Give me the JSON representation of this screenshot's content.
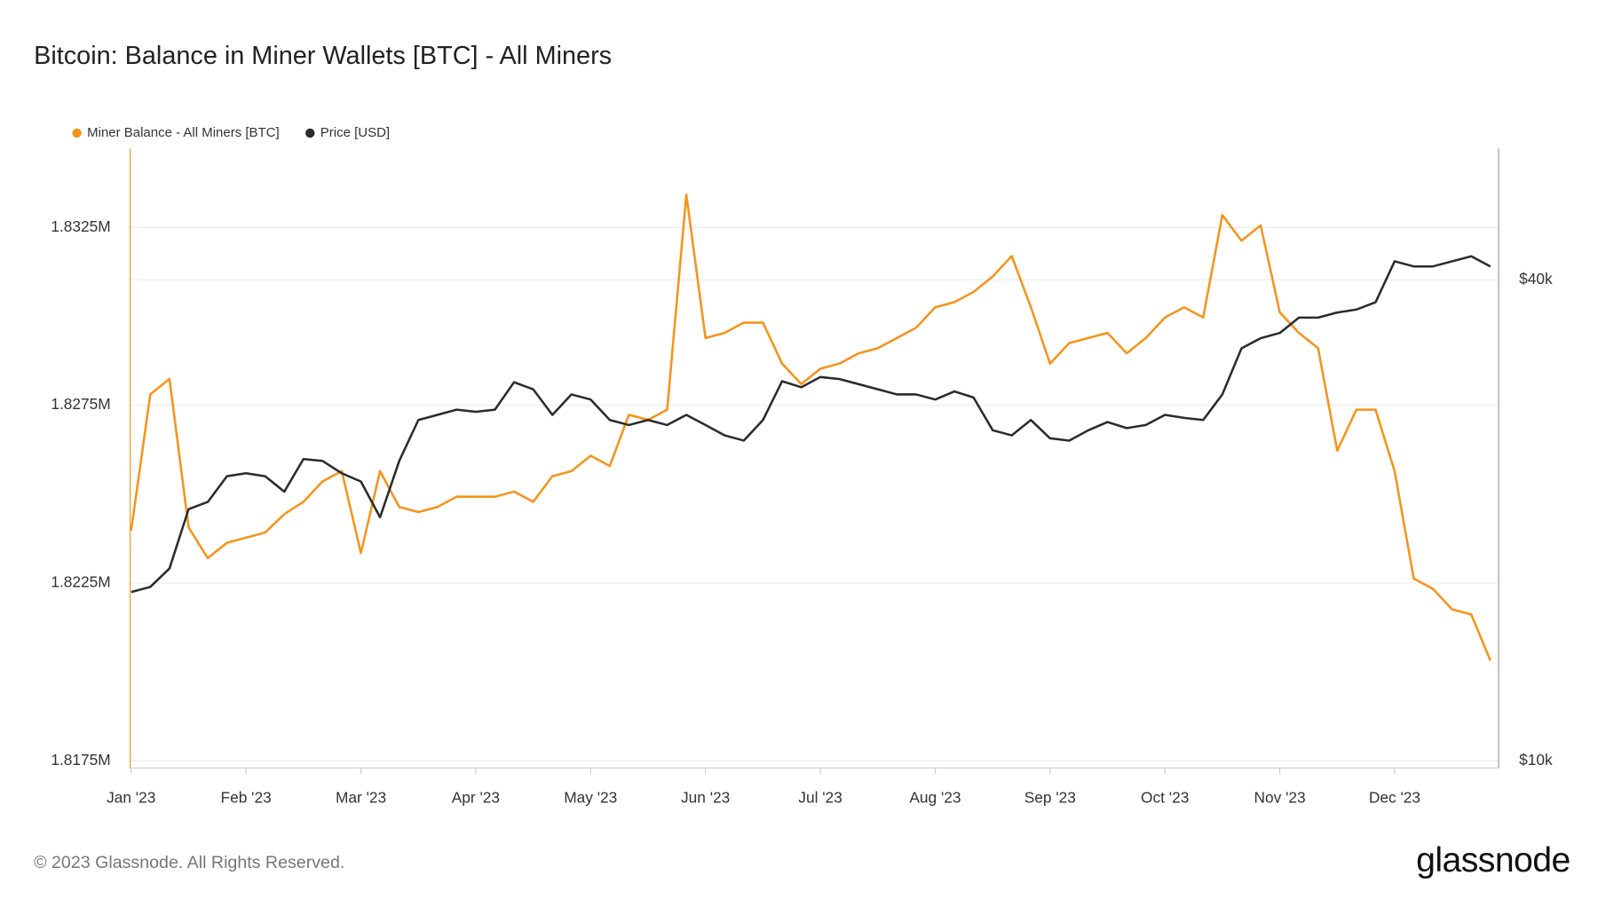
{
  "chart_data": {
    "type": "line",
    "title": "Bitcoin: Balance in Miner Wallets [BTC] - All Miners",
    "categories": [
      "Jan '23",
      null,
      null,
      null,
      null,
      null,
      "Feb '23",
      null,
      null,
      null,
      null,
      null,
      "Mar '23",
      null,
      null,
      null,
      null,
      null,
      "Apr '23",
      null,
      null,
      null,
      null,
      null,
      "May '23",
      null,
      null,
      null,
      null,
      null,
      "Jun '23",
      null,
      null,
      null,
      null,
      null,
      "Jul '23",
      null,
      null,
      null,
      null,
      null,
      "Aug '23",
      null,
      null,
      null,
      null,
      null,
      "Sep '23",
      null,
      null,
      null,
      null,
      null,
      "Oct '23",
      null,
      null,
      null,
      null,
      null,
      "Nov '23",
      null,
      null,
      null,
      null,
      null,
      "Dec '23",
      null,
      null,
      null,
      null,
      null
    ],
    "series": [
      {
        "name": "Miner Balance - All Miners [BTC]",
        "color": "#f7931a",
        "axis": "y",
        "values": [
          1823978,
          1827807,
          1828239,
          1824064,
          1823200,
          1823632,
          1823776,
          1823920,
          1824438,
          1824784,
          1825360,
          1825648,
          1823344,
          1825648,
          1824640,
          1824496,
          1824640,
          1824928,
          1824928,
          1824928,
          1825072,
          1824784,
          1825504,
          1825648,
          1826079,
          1825792,
          1827231,
          1827087,
          1827375,
          1833421,
          1829390,
          1829534,
          1829822,
          1829822,
          1828671,
          1828095,
          1828527,
          1828671,
          1828958,
          1829102,
          1829390,
          1829678,
          1830254,
          1830398,
          1830686,
          1831118,
          1831693,
          1830254,
          1828671,
          1829246,
          1829390,
          1829534,
          1828958,
          1829390,
          1829966,
          1830254,
          1829966,
          1832845,
          1832125,
          1832557,
          1830110,
          1829534,
          1829102,
          1826223,
          1827375,
          1827375,
          1825648,
          1822625,
          1822337,
          1821761,
          1821617,
          1820321
        ]
      },
      {
        "name": "Price [USD]",
        "color": "#2b2b2b",
        "axis": "y2",
        "values": [
          16270,
          16510,
          17410,
          20660,
          21090,
          22710,
          22910,
          22710,
          21720,
          23870,
          23730,
          22910,
          22370,
          20180,
          23730,
          26710,
          27100,
          27510,
          27340,
          27510,
          29780,
          29180,
          27100,
          28750,
          28330,
          26710,
          26320,
          26710,
          26320,
          27100,
          26320,
          25550,
          25170,
          26710,
          29870,
          29350,
          30230,
          30050,
          29610,
          29180,
          28750,
          28750,
          28330,
          29000,
          28500,
          25930,
          25550,
          26710,
          25330,
          25170,
          25930,
          26550,
          26090,
          26320,
          27100,
          26870,
          26710,
          28750,
          32830,
          33810,
          34320,
          35870,
          35870,
          36400,
          36720,
          37490,
          42190,
          41570,
          41570,
          42190,
          42810,
          41570
        ]
      }
    ],
    "ylim": [
      1817300,
      1834720
    ],
    "yticks": [
      {
        "value": 1817500,
        "label": "1.8175M"
      },
      {
        "value": 1822500,
        "label": "1.8225M"
      },
      {
        "value": 1827500,
        "label": "1.8275M"
      },
      {
        "value": 1832500,
        "label": "1.8325M"
      }
    ],
    "y2lim": [
      9800,
      58400
    ],
    "y2ticks": [
      {
        "value": 10000,
        "label": "$10k"
      },
      {
        "value": 40000,
        "label": "$40k"
      }
    ],
    "y2scale": "log",
    "grid": true,
    "legend": "top-left",
    "footer": "© 2023 Glassnode. All Rights Reserved.",
    "logo": "glassnode"
  }
}
